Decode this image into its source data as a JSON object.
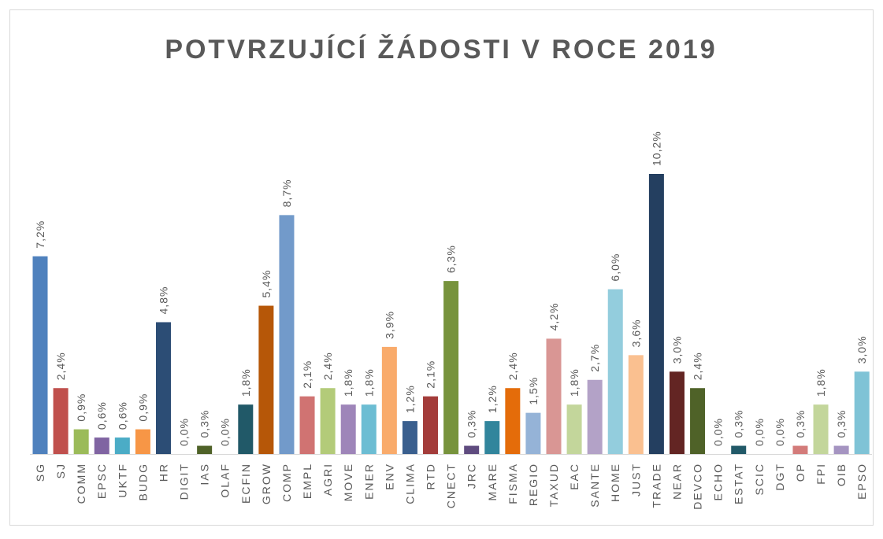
{
  "chart_data": {
    "type": "bar",
    "title": "POTVRZUJÍCÍ ŽÁDOSTI V ROCE 2019",
    "categories": [
      "SG",
      "SJ",
      "COMM",
      "EPSC",
      "UKTF",
      "BUDG",
      "HR",
      "DIGIT",
      "IAS",
      "OLAF",
      "ECFIN",
      "GROW",
      "COMP",
      "EMPL",
      "AGRI",
      "MOVE",
      "ENER",
      "ENV",
      "CLIMA",
      "RTD",
      "CNECT",
      "JRC",
      "MARE",
      "FISMA",
      "REGIO",
      "TAXUD",
      "EAC",
      "SANTE",
      "HOME",
      "JUST",
      "TRADE",
      "NEAR",
      "DEVCO",
      "ECHO",
      "ESTAT",
      "SCIC",
      "DGT",
      "OP",
      "FPI",
      "OIB",
      "EPSO"
    ],
    "values": [
      7.2,
      2.4,
      0.9,
      0.6,
      0.6,
      0.9,
      4.8,
      0,
      0.3,
      0,
      1.8,
      5.4,
      8.7,
      2.1,
      2.4,
      1.8,
      1.8,
      3.9,
      1.2,
      2.1,
      6.3,
      0.3,
      1.2,
      2.4,
      1.5,
      4.2,
      1.8,
      2.7,
      6.0,
      3.6,
      10.2,
      3.0,
      2.4,
      0,
      0.3,
      0,
      0,
      0.3,
      1.8,
      0.3,
      3.0
    ],
    "value_labels": [
      "7,2%",
      "2,4%",
      "0,9%",
      "0,6%",
      "0,6%",
      "0,9%",
      "4,8%",
      "0,0%",
      "0,3%",
      "0,0%",
      "1,8%",
      "5,4%",
      "8,7%",
      "2,1%",
      "2,4%",
      "1,8%",
      "1,8%",
      "3,9%",
      "1,2%",
      "2,1%",
      "6,3%",
      "0,3%",
      "1,2%",
      "2,4%",
      "1,5%",
      "4,2%",
      "1,8%",
      "2,7%",
      "6,0%",
      "3,6%",
      "10,2%",
      "3,0%",
      "2,4%",
      "0,0%",
      "0,3%",
      "0,0%",
      "0,0%",
      "0,3%",
      "1,8%",
      "0,3%",
      "3,0%"
    ],
    "colors": [
      "#4f81bd",
      "#c0504d",
      "#9bbb59",
      "#8064a2",
      "#4bacc6",
      "#f79646",
      "#2c4d75",
      "#772c2a",
      "#4f6228",
      "#5f4b7f",
      "#215968",
      "#b65708",
      "#729aca",
      "#d07372",
      "#b3cb79",
      "#9e85b9",
      "#6cbdd3",
      "#f9ab6b",
      "#3a5f8e",
      "#a33c3a",
      "#77933c",
      "#5f4b7f",
      "#31859c",
      "#e46c0a",
      "#95b3d7",
      "#d99694",
      "#c3d69b",
      "#b3a2c7",
      "#93cddd",
      "#fac090",
      "#243f60",
      "#632523",
      "#4f6228",
      "#3d2f52",
      "#215968",
      "#984807",
      "#7ea1cb",
      "#d37b7a",
      "#c3d69b",
      "#a594c1",
      "#7fc3d6"
    ]
  }
}
